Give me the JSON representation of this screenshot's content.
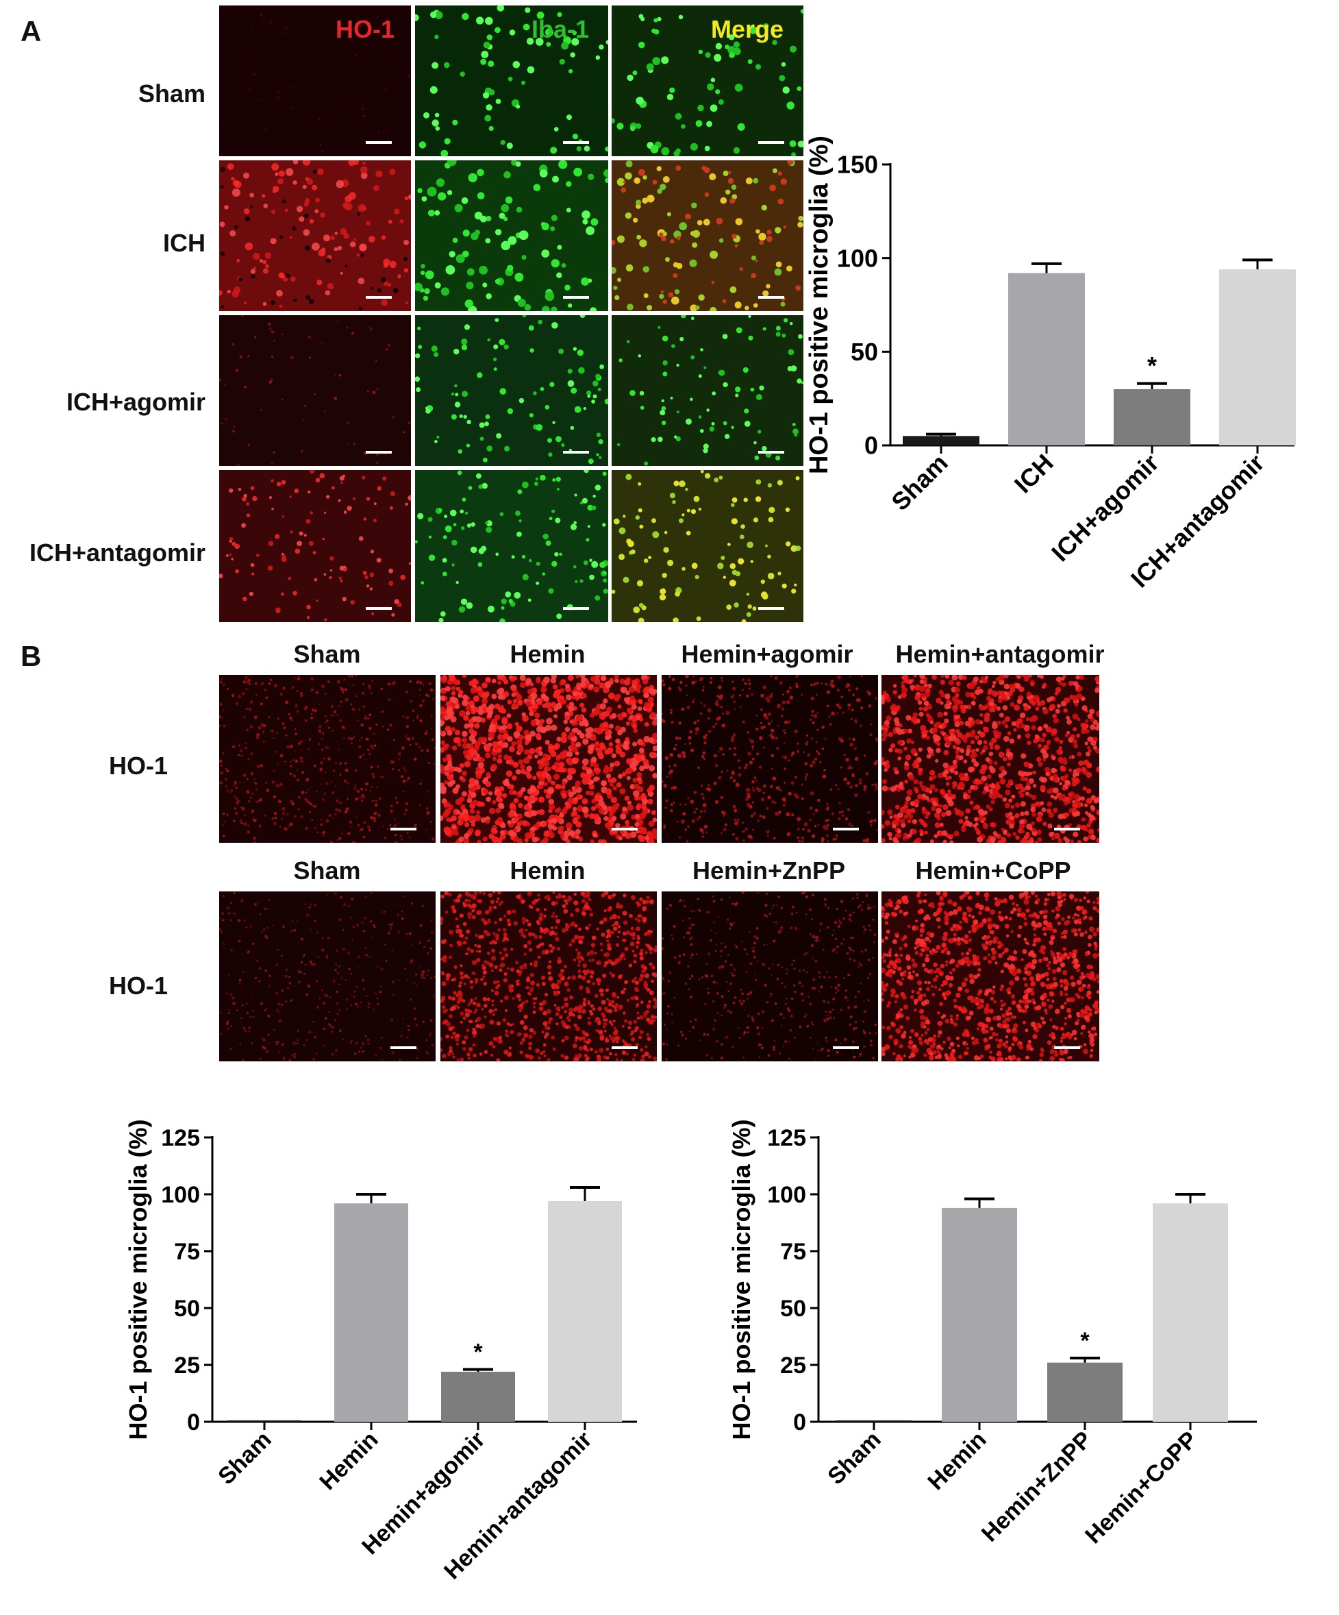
{
  "panels": {
    "A": {
      "letter": "A",
      "channels": [
        {
          "label": "HO-1",
          "color": "#e3272b"
        },
        {
          "label": "Iba-1",
          "color": "#2fbf2f"
        },
        {
          "label": "Merge",
          "color": "#f2ea1c"
        }
      ],
      "rows": [
        "Sham",
        "ICH",
        "ICH+agomir",
        "ICH+antagomir"
      ]
    },
    "B": {
      "letter": "B",
      "row1": {
        "columns": [
          "Sham",
          "Hemin",
          "Hemin+agomir",
          "Hemin+antagomir"
        ],
        "row_label": "HO-1"
      },
      "row2": {
        "columns": [
          "Sham",
          "Hemin",
          "Hemin+ZnPP",
          "Hemin+CoPP"
        ],
        "row_label": "HO-1"
      }
    }
  },
  "chart_data": [
    {
      "type": "bar",
      "categories": [
        "Sham",
        "ICH",
        "ICH+agomir",
        "ICH+antagomir"
      ],
      "values": [
        5,
        92,
        30,
        94
      ],
      "errors": [
        1,
        5,
        3,
        5
      ],
      "significance": [
        "",
        "",
        "*",
        ""
      ],
      "ylabel": "HO-1 positive microglia (%)",
      "ylim": [
        0,
        150
      ],
      "yticks": [
        "0",
        "50",
        "100",
        "150"
      ],
      "bar_colors": [
        "#1a1a1a",
        "#a6a6ab",
        "#7d7d7d",
        "#d6d6d6"
      ]
    },
    {
      "type": "bar",
      "categories": [
        "Sham",
        "Hemin",
        "Hemin+agomir",
        "Hemin+antagomir"
      ],
      "values": [
        0,
        96,
        22,
        97
      ],
      "errors": [
        0,
        4,
        1,
        6
      ],
      "significance": [
        "",
        "",
        "*",
        ""
      ],
      "ylabel": "HO-1 positive microglia (%)",
      "ylim": [
        0,
        125
      ],
      "yticks": [
        "0",
        "25",
        "50",
        "75",
        "100",
        "125"
      ],
      "bar_colors": [
        "#1a1a1a",
        "#a6a6ab",
        "#7d7d7d",
        "#d6d6d6"
      ]
    },
    {
      "type": "bar",
      "categories": [
        "Sham",
        "Hemin",
        "Hemin+ZnPP",
        "Hemin+CoPP"
      ],
      "values": [
        0,
        94,
        26,
        96
      ],
      "errors": [
        0,
        4,
        2,
        4
      ],
      "significance": [
        "",
        "",
        "*",
        ""
      ],
      "ylabel": "HO-1 positive microglia (%)",
      "ylim": [
        0,
        125
      ],
      "yticks": [
        "0",
        "25",
        "50",
        "75",
        "100",
        "125"
      ],
      "bar_colors": [
        "#1a1a1a",
        "#a6a6ab",
        "#7d7d7d",
        "#d6d6d6"
      ]
    }
  ]
}
